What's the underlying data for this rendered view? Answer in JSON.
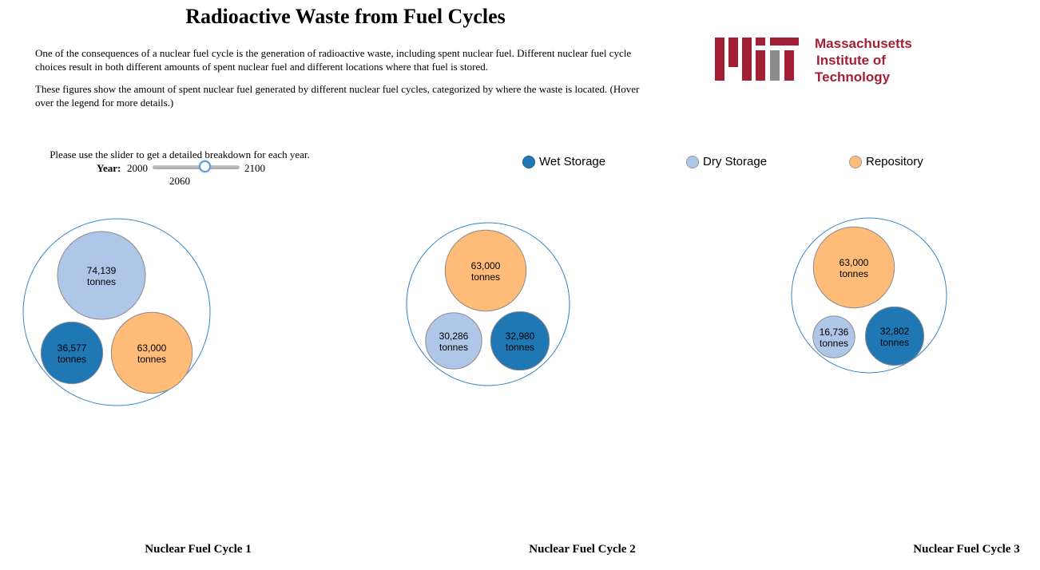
{
  "page": {
    "title": "Radioactive Waste from Fuel Cycles",
    "intro_1": "One of the consequences of a nuclear fuel cycle is the generation of radioactive waste, including spent nuclear fuel. Different nuclear fuel cycle choices result in both different amounts of spent nuclear fuel and different locations where that fuel is stored.",
    "intro_2": "These figures show the amount of spent nuclear fuel generated by different nuclear fuel cycles, categorized by where the waste is located. (Hover over the legend for more details.)"
  },
  "logo": {
    "line1": "Massachusetts",
    "line2": "Institute of",
    "line3": "Technology",
    "brand_color": "#a31f34",
    "grey_color": "#8a8b8c"
  },
  "slider": {
    "caption": "Please use the slider to get a detailed breakdown for each year.",
    "year_label": "Year:",
    "min": 2000,
    "max": 2100,
    "value": 2060,
    "min_label": "2000",
    "max_label": "2100",
    "value_label": "2060"
  },
  "legend": {
    "items": [
      {
        "label": "Wet Storage",
        "color": "#1f77b4"
      },
      {
        "label": "Dry Storage",
        "color": "#aec7e8"
      },
      {
        "label": "Repository",
        "color": "#ffbb78"
      }
    ]
  },
  "chart_data": [
    {
      "type": "bubble",
      "title": "Nuclear Fuel Cycle 1",
      "unit": "tonnes",
      "items": [
        {
          "category": "Dry Storage",
          "value": 74139,
          "label": "74,139"
        },
        {
          "category": "Wet Storage",
          "value": 36577,
          "label": "36,577"
        },
        {
          "category": "Repository",
          "value": 63000,
          "label": "63,000"
        }
      ]
    },
    {
      "type": "bubble",
      "title": "Nuclear Fuel Cycle 2",
      "unit": "tonnes",
      "items": [
        {
          "category": "Repository",
          "value": 63000,
          "label": "63,000"
        },
        {
          "category": "Dry Storage",
          "value": 30286,
          "label": "30,286"
        },
        {
          "category": "Wet Storage",
          "value": 32980,
          "label": "32,980"
        }
      ]
    },
    {
      "type": "bubble",
      "title": "Nuclear Fuel Cycle 3",
      "unit": "tonnes",
      "items": [
        {
          "category": "Repository",
          "value": 63000,
          "label": "63,000"
        },
        {
          "category": "Dry Storage",
          "value": 16736,
          "label": "16,736"
        },
        {
          "category": "Wet Storage",
          "value": 32802,
          "label": "32,802"
        }
      ]
    }
  ]
}
